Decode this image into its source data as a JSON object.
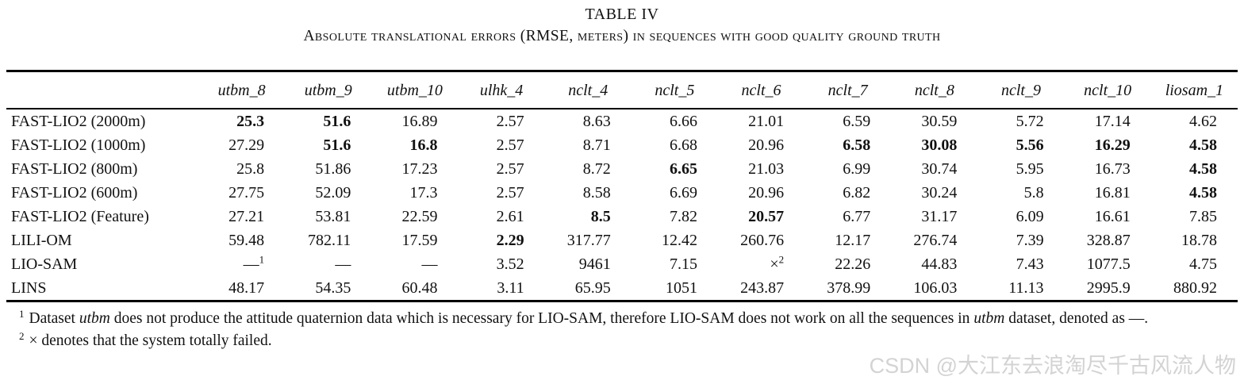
{
  "colors": {
    "text": "#111111",
    "watermark": "#d3d3d3",
    "rule": "#000000"
  },
  "watermark": "CSDN @大江东去浪淘尽千古风流人物",
  "table": {
    "number": "TABLE IV",
    "caption": "Absolute translational errors (RMSE, meters) in sequences with good quality ground truth",
    "columns": [
      "utbm_8",
      "utbm_9",
      "utbm_10",
      "ulhk_4",
      "nclt_4",
      "nclt_5",
      "nclt_6",
      "nclt_7",
      "nclt_8",
      "nclt_9",
      "nclt_10",
      "liosam_1"
    ],
    "rows": [
      {
        "label": "FAST-LIO2 (2000m)",
        "cells": [
          {
            "t": "25.3",
            "b": true
          },
          {
            "t": "51.6",
            "b": true
          },
          {
            "t": "16.89"
          },
          {
            "t": "2.57"
          },
          {
            "t": "8.63"
          },
          {
            "t": "6.66"
          },
          {
            "t": "21.01"
          },
          {
            "t": "6.59"
          },
          {
            "t": "30.59"
          },
          {
            "t": "5.72"
          },
          {
            "t": "17.14"
          },
          {
            "t": "4.62"
          }
        ]
      },
      {
        "label": "FAST-LIO2 (1000m)",
        "cells": [
          {
            "t": "27.29"
          },
          {
            "t": "51.6",
            "b": true
          },
          {
            "t": "16.8",
            "b": true
          },
          {
            "t": "2.57"
          },
          {
            "t": "8.71"
          },
          {
            "t": "6.68"
          },
          {
            "t": "20.96"
          },
          {
            "t": "6.58",
            "b": true
          },
          {
            "t": "30.08",
            "b": true
          },
          {
            "t": "5.56",
            "b": true
          },
          {
            "t": "16.29",
            "b": true
          },
          {
            "t": "4.58",
            "b": true
          }
        ]
      },
      {
        "label": "FAST-LIO2 (800m)",
        "cells": [
          {
            "t": "25.8"
          },
          {
            "t": "51.86"
          },
          {
            "t": "17.23"
          },
          {
            "t": "2.57"
          },
          {
            "t": "8.72"
          },
          {
            "t": "6.65",
            "b": true
          },
          {
            "t": "21.03"
          },
          {
            "t": "6.99"
          },
          {
            "t": "30.74"
          },
          {
            "t": "5.95"
          },
          {
            "t": "16.73"
          },
          {
            "t": "4.58",
            "b": true
          }
        ]
      },
      {
        "label": "FAST-LIO2 (600m)",
        "cells": [
          {
            "t": "27.75"
          },
          {
            "t": "52.09"
          },
          {
            "t": "17.3"
          },
          {
            "t": "2.57"
          },
          {
            "t": "8.58"
          },
          {
            "t": "6.69"
          },
          {
            "t": "20.96"
          },
          {
            "t": "6.82"
          },
          {
            "t": "30.24"
          },
          {
            "t": "5.8"
          },
          {
            "t": "16.81"
          },
          {
            "t": "4.58",
            "b": true
          }
        ]
      },
      {
        "label": "FAST-LIO2 (Feature)",
        "cells": [
          {
            "t": "27.21"
          },
          {
            "t": "53.81"
          },
          {
            "t": "22.59"
          },
          {
            "t": "2.61"
          },
          {
            "t": "8.5",
            "b": true
          },
          {
            "t": "7.82"
          },
          {
            "t": "20.57",
            "b": true
          },
          {
            "t": "6.77"
          },
          {
            "t": "31.17"
          },
          {
            "t": "6.09"
          },
          {
            "t": "16.61"
          },
          {
            "t": "7.85"
          }
        ]
      },
      {
        "label": "LILI-OM",
        "cells": [
          {
            "t": "59.48"
          },
          {
            "t": "782.11"
          },
          {
            "t": "17.59"
          },
          {
            "t": "2.29",
            "b": true
          },
          {
            "t": "317.77"
          },
          {
            "t": "12.42"
          },
          {
            "t": "260.76"
          },
          {
            "t": "12.17"
          },
          {
            "t": "276.74"
          },
          {
            "t": "7.39"
          },
          {
            "t": "328.87"
          },
          {
            "t": "18.78"
          }
        ]
      },
      {
        "label": "LIO-SAM",
        "cells": [
          {
            "t": "—",
            "sup": "1"
          },
          {
            "t": "—"
          },
          {
            "t": "—"
          },
          {
            "t": "3.52"
          },
          {
            "t": "9461"
          },
          {
            "t": "7.15"
          },
          {
            "t": "×",
            "sup": "2"
          },
          {
            "t": "22.26"
          },
          {
            "t": "44.83"
          },
          {
            "t": "7.43"
          },
          {
            "t": "1077.5"
          },
          {
            "t": "4.75"
          }
        ]
      },
      {
        "label": "LINS",
        "cells": [
          {
            "t": "48.17"
          },
          {
            "t": "54.35"
          },
          {
            "t": "60.48"
          },
          {
            "t": "3.11"
          },
          {
            "t": "65.95"
          },
          {
            "t": "1051"
          },
          {
            "t": "243.87"
          },
          {
            "t": "378.99"
          },
          {
            "t": "106.03"
          },
          {
            "t": "11.13"
          },
          {
            "t": "2995.9"
          },
          {
            "t": "880.92"
          }
        ]
      }
    ],
    "footnotes": [
      {
        "marker": "1",
        "segments": [
          {
            "t": "Dataset "
          },
          {
            "t": "utbm",
            "i": true
          },
          {
            "t": " does not produce the attitude quaternion data which is necessary for LIO-SAM, therefore LIO-SAM does not work on all the sequences in "
          },
          {
            "t": "utbm",
            "i": true
          },
          {
            "t": " dataset, denoted as —."
          }
        ]
      },
      {
        "marker": "2",
        "segments": [
          {
            "t": "× denotes that the system totally failed."
          }
        ]
      }
    ]
  }
}
